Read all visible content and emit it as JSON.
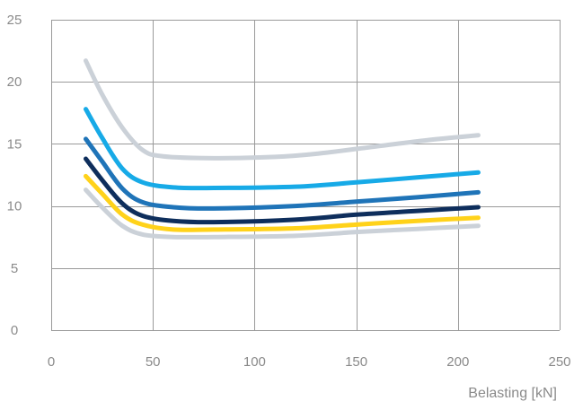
{
  "chart_data": {
    "type": "line",
    "title": "",
    "xlabel": "Belasting [kN]",
    "ylabel": "",
    "xlim": [
      0,
      250
    ],
    "ylim": [
      0,
      25
    ],
    "x_ticks": [
      0,
      50,
      100,
      150,
      200,
      250
    ],
    "y_ticks": [
      0,
      5,
      10,
      15,
      20,
      25
    ],
    "x_tick_labels": [
      "0",
      "50",
      "100",
      "150",
      "200",
      "250"
    ],
    "y_tick_labels": [
      "0",
      "5",
      "10",
      "15",
      "20",
      "25"
    ],
    "grid": true,
    "legend": "none",
    "series": [
      {
        "color": "#cbd1d8",
        "points": [
          [
            17,
            11.3
          ],
          [
            25,
            9.9
          ],
          [
            35,
            8.4
          ],
          [
            45,
            7.7
          ],
          [
            60,
            7.5
          ],
          [
            80,
            7.5
          ],
          [
            120,
            7.6
          ],
          [
            150,
            7.9
          ],
          [
            180,
            8.15
          ],
          [
            210,
            8.4
          ]
        ]
      },
      {
        "color": "#ffd21a",
        "points": [
          [
            17,
            12.4
          ],
          [
            25,
            11.0
          ],
          [
            35,
            9.3
          ],
          [
            45,
            8.5
          ],
          [
            60,
            8.1
          ],
          [
            80,
            8.1
          ],
          [
            120,
            8.2
          ],
          [
            150,
            8.5
          ],
          [
            180,
            8.8
          ],
          [
            210,
            9.05
          ]
        ]
      },
      {
        "color": "#0e2e5c",
        "points": [
          [
            17,
            13.8
          ],
          [
            25,
            12.1
          ],
          [
            35,
            10.2
          ],
          [
            45,
            9.2
          ],
          [
            60,
            8.8
          ],
          [
            80,
            8.7
          ],
          [
            120,
            8.9
          ],
          [
            150,
            9.3
          ],
          [
            180,
            9.6
          ],
          [
            210,
            9.9
          ]
        ]
      },
      {
        "color": "#1f74b8",
        "points": [
          [
            17,
            15.4
          ],
          [
            25,
            13.6
          ],
          [
            35,
            11.4
          ],
          [
            45,
            10.3
          ],
          [
            60,
            9.9
          ],
          [
            80,
            9.8
          ],
          [
            120,
            10.0
          ],
          [
            150,
            10.35
          ],
          [
            180,
            10.7
          ],
          [
            210,
            11.1
          ]
        ]
      },
      {
        "color": "#17aae7",
        "points": [
          [
            17,
            17.8
          ],
          [
            25,
            15.5
          ],
          [
            35,
            13.0
          ],
          [
            45,
            11.9
          ],
          [
            60,
            11.5
          ],
          [
            80,
            11.45
          ],
          [
            120,
            11.55
          ],
          [
            150,
            11.9
          ],
          [
            180,
            12.3
          ],
          [
            210,
            12.7
          ]
        ]
      },
      {
        "color": "#cbd1d8",
        "points": [
          [
            17,
            21.7
          ],
          [
            25,
            19.0
          ],
          [
            35,
            16.3
          ],
          [
            45,
            14.5
          ],
          [
            55,
            14.0
          ],
          [
            80,
            13.85
          ],
          [
            110,
            13.95
          ],
          [
            130,
            14.2
          ],
          [
            160,
            14.8
          ],
          [
            185,
            15.3
          ],
          [
            210,
            15.7
          ]
        ]
      }
    ]
  }
}
